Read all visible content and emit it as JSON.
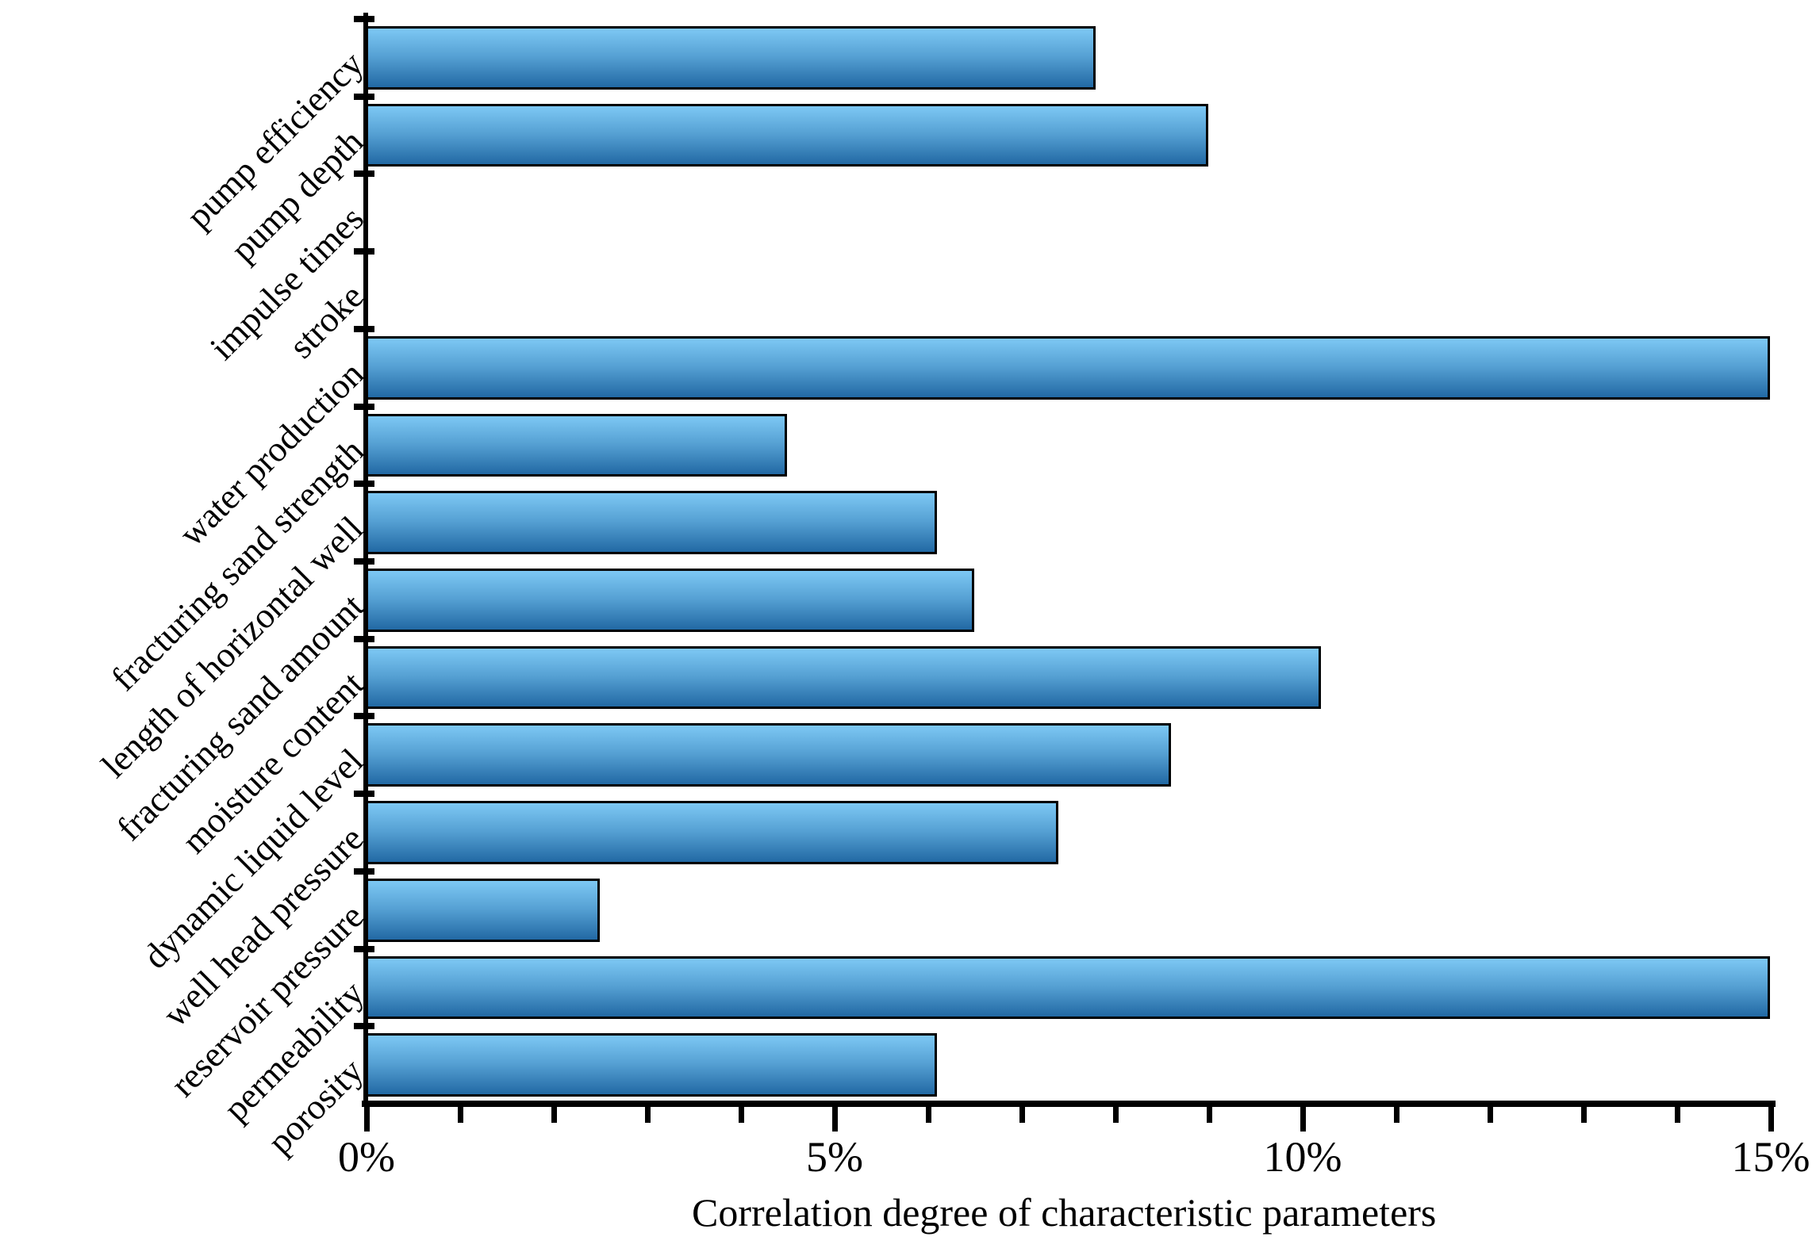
{
  "chart_data": {
    "type": "bar",
    "orientation": "horizontal",
    "title": "",
    "xlabel": "Correlation degree of characteristic parameters",
    "ylabel": "",
    "categories": [
      "pump efficiency",
      "pump depth",
      "impulse times",
      "stroke",
      "water production",
      "fracturing sand strength",
      "length of horizontal well",
      "fracturing sand amount",
      "moisture content",
      "dynamic liquid level",
      "well head pressure",
      "reservoir pressure",
      "permeability",
      "porosity"
    ],
    "values": [
      7.8,
      9.0,
      0,
      0,
      15.0,
      4.5,
      6.1,
      6.5,
      10.2,
      8.6,
      7.4,
      2.5,
      15.0,
      6.1
    ],
    "value_unit": "%",
    "xlim": [
      0,
      15
    ],
    "x_major_tick_values": [
      0,
      5,
      10,
      15
    ],
    "x_major_tick_labels": [
      "0%",
      "5%",
      "10%",
      "15%"
    ],
    "x_minor_tick_step": 1,
    "grid": false,
    "legend": null,
    "colors": {
      "bar_gradient_top": "#7DC8F4",
      "bar_gradient_mid": "#55A0D3",
      "bar_gradient_bottom": "#2269A4",
      "bar_border": "#000000",
      "axis": "#000000",
      "text": "#000000",
      "background": "#FFFFFF"
    }
  }
}
